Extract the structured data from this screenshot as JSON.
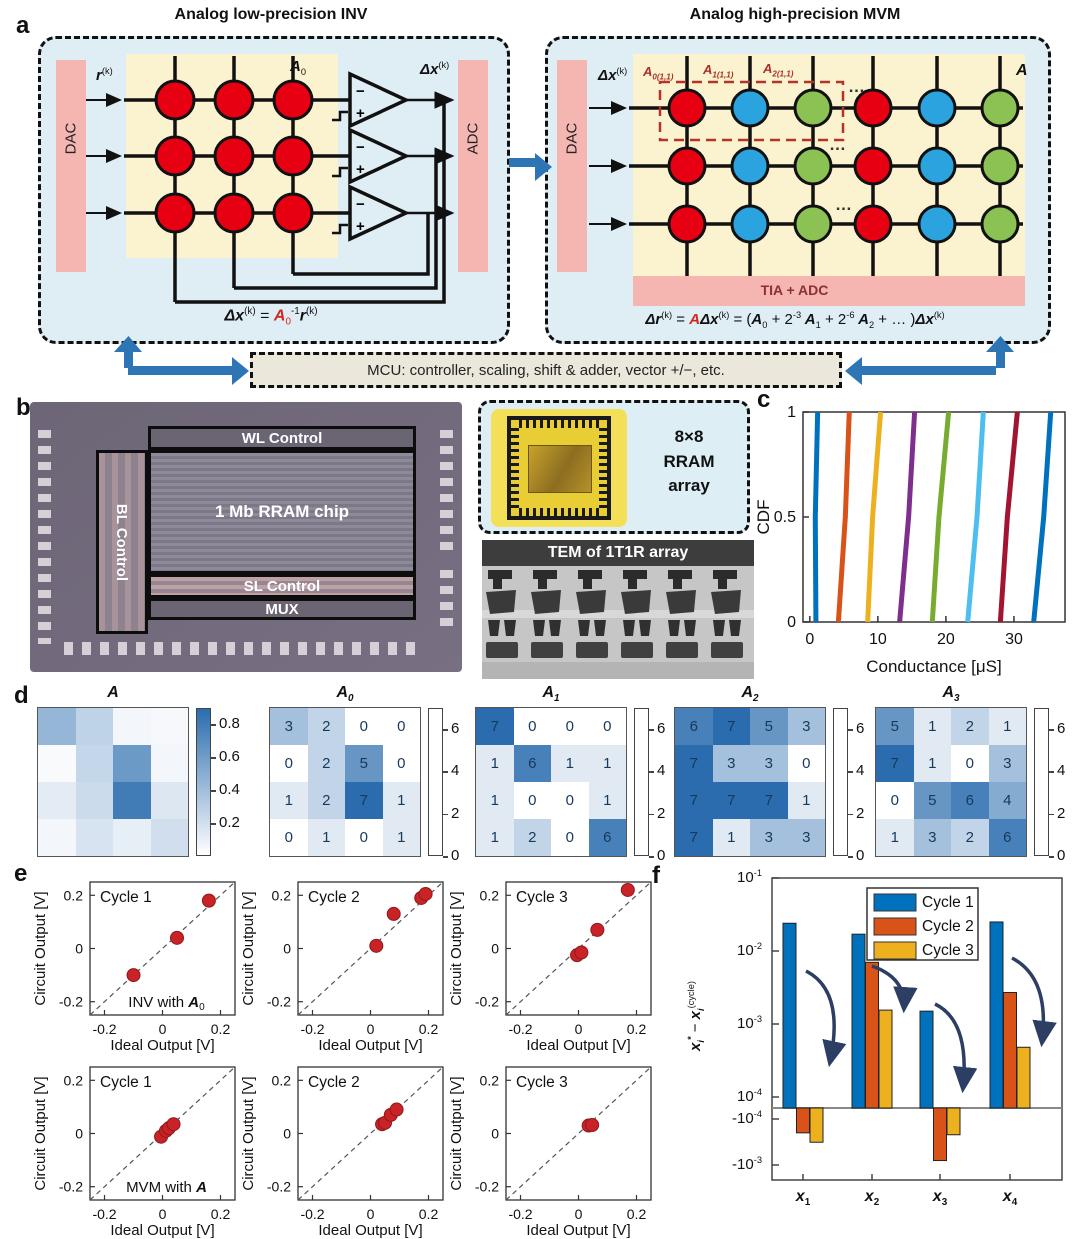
{
  "panels": {
    "a": "a",
    "b": "b",
    "c": "c",
    "d": "d",
    "e": "e",
    "f": "f"
  },
  "colors": {
    "accent_blue": "#2e75b6",
    "rram_red": "#e60012",
    "rram_blue": "#2ba3de",
    "rram_green": "#8cc153",
    "panel_bg": "#dfeef5",
    "crossbar_bg": "#fbf3d0",
    "periph_pink": "#f5b6b1",
    "heat_max": "#2a6cae",
    "dot_red": "#c92227"
  },
  "panel_a": {
    "left": {
      "title": "Analog low-precision INV",
      "dac_label": "DAC",
      "adc_label": "ADC",
      "r_base": "r",
      "r_sup": "(k)",
      "a0_base": "A",
      "a0_sub": "0",
      "dx_base": "Δx",
      "dx_sup": "(k)",
      "opamp_minus": "−",
      "opamp_plus": "+",
      "eq": {
        "p1": "Δx",
        "p2": "(k)",
        "p3": " = ",
        "p4": "A",
        "p5": "0",
        "p6": "-1",
        "p7": "r",
        "p8": "(k)"
      }
    },
    "right": {
      "title": "Analog high-precision MVM",
      "dac_label": "DAC",
      "tia_label": "TIA + ADC",
      "dx_base": "Δx",
      "dx_sup": "(k)",
      "a_label": "A",
      "cells": [
        {
          "b": "A",
          "s": "0(1,1)"
        },
        {
          "b": "A",
          "s": "1(1,1)"
        },
        {
          "b": "A",
          "s": "2(1,1)"
        }
      ],
      "ellipsis": "…",
      "eq": {
        "p1": "Δr",
        "p2": "(k)",
        "p3": " = ",
        "p4": "A",
        "p5": "Δx",
        "p6": "(k)",
        "p7": " = (",
        "p8": "A",
        "p9": "0",
        "p10": " + 2",
        "p11": "-3",
        "p12": " A",
        "p13": "1",
        "p14": " + 2",
        "p15": "-6",
        "p16": " A",
        "p17": "2",
        "p18": " + … )",
        "p19": "Δx",
        "p20": "(k)"
      }
    },
    "mcu_text": "MCU: controller, scaling, shift & adder, vector +/−, etc."
  },
  "panel_b": {
    "wl": "WL Control",
    "bl": "BL Control",
    "chip": "1 Mb RRAM chip",
    "sl": "SL Control",
    "mux": "MUX",
    "pkg_line1": "8×8",
    "pkg_line2": "RRAM",
    "pkg_line3": "array",
    "tem": "TEM of 1T1R array"
  },
  "panel_f_ylabel": {
    "s1": "x",
    "s2": "i",
    "s3": "*",
    "s4": " − ",
    "s5": "x",
    "s6": "i",
    "s7": "(cycle)"
  },
  "chart_data": [
    {
      "id": "cdf",
      "type": "line",
      "xlabel": "Conductance [μS]",
      "ylabel": "CDF",
      "xlim": [
        -1,
        37.5
      ],
      "ylim": [
        0,
        1
      ],
      "xticks": [
        0,
        10,
        20,
        30
      ],
      "yticks": [
        0,
        0.5,
        1
      ],
      "ytick_labels": [
        "0",
        "0.5",
        "1"
      ],
      "series": [
        {
          "name": "state-1",
          "color": "#0072BD",
          "x_at_cdf0": 0.9,
          "x_at_cdf1": 1.15
        },
        {
          "name": "state-2",
          "color": "#D95319",
          "x_at_cdf0": 4.2,
          "x_at_cdf1": 5.8
        },
        {
          "name": "state-3",
          "color": "#EDB120",
          "x_at_cdf0": 8.5,
          "x_at_cdf1": 10.4
        },
        {
          "name": "state-4",
          "color": "#7E2F8E",
          "x_at_cdf0": 13.2,
          "x_at_cdf1": 15.4
        },
        {
          "name": "state-5",
          "color": "#77AC30",
          "x_at_cdf0": 18.0,
          "x_at_cdf1": 20.4
        },
        {
          "name": "state-6",
          "color": "#4DBEEE",
          "x_at_cdf0": 23.2,
          "x_at_cdf1": 25.5
        },
        {
          "name": "state-7",
          "color": "#A2142F",
          "x_at_cdf0": 28.0,
          "x_at_cdf1": 30.5
        },
        {
          "name": "state-8",
          "color": "#0072BD",
          "x_at_cdf0": 32.9,
          "x_at_cdf1": 35.4
        }
      ]
    },
    {
      "id": "heatmaps",
      "type": "heatmap",
      "maps": [
        {
          "title_b": "A",
          "title_s": "",
          "vmin": 0,
          "vmax": 0.9,
          "ticks": [
            0.2,
            0.4,
            0.6,
            0.8
          ],
          "show_values": false,
          "values": [
            [
              0.45,
              0.27,
              0.05,
              0.04
            ],
            [
              0.03,
              0.25,
              0.62,
              0.05
            ],
            [
              0.12,
              0.22,
              0.8,
              0.15
            ],
            [
              0.05,
              0.17,
              0.1,
              0.2
            ]
          ]
        },
        {
          "title_b": "A",
          "title_s": "0",
          "vmin": 0,
          "vmax": 7,
          "ticks": [
            0,
            2,
            4,
            6
          ],
          "show_values": true,
          "values": [
            [
              3,
              2,
              0,
              0
            ],
            [
              0,
              2,
              5,
              0
            ],
            [
              1,
              2,
              7,
              1
            ],
            [
              0,
              1,
              0,
              1
            ]
          ]
        },
        {
          "title_b": "A",
          "title_s": "1",
          "vmin": 0,
          "vmax": 7,
          "ticks": [
            0,
            2,
            4,
            6
          ],
          "show_values": true,
          "values": [
            [
              7,
              0,
              0,
              0
            ],
            [
              1,
              6,
              1,
              1
            ],
            [
              1,
              0,
              0,
              1
            ],
            [
              1,
              2,
              0,
              6
            ]
          ]
        },
        {
          "title_b": "A",
          "title_s": "2",
          "vmin": 0,
          "vmax": 7,
          "ticks": [
            0,
            2,
            4,
            6
          ],
          "show_values": true,
          "values": [
            [
              6,
              7,
              5,
              3
            ],
            [
              7,
              3,
              3,
              0
            ],
            [
              7,
              7,
              7,
              1
            ],
            [
              7,
              1,
              3,
              3
            ]
          ]
        },
        {
          "title_b": "A",
          "title_s": "3",
          "vmin": 0,
          "vmax": 7,
          "ticks": [
            0,
            2,
            4,
            6
          ],
          "show_values": true,
          "values": [
            [
              5,
              1,
              2,
              1
            ],
            [
              7,
              1,
              0,
              3
            ],
            [
              0,
              5,
              6,
              4
            ],
            [
              1,
              3,
              2,
              6
            ]
          ]
        }
      ]
    },
    {
      "id": "scatter",
      "type": "scatter",
      "xlabel": "Ideal Output [V]",
      "ylabel": "Circuit Output [V]",
      "xlim": [
        -0.25,
        0.25
      ],
      "ylim": [
        -0.25,
        0.25
      ],
      "ticks": [
        -0.2,
        0,
        0.2
      ],
      "tick_labels": [
        "-0.2",
        "0",
        "0.2"
      ],
      "dot_color": "#c92227",
      "plots": [
        {
          "title": "Cycle 1",
          "ann_pre": "INV with ",
          "ann_bi": "A",
          "ann_sub": "0",
          "points": [
            [
              -0.1,
              -0.1
            ],
            [
              0.05,
              0.04
            ],
            [
              0.16,
              0.18
            ]
          ]
        },
        {
          "title": "Cycle 2",
          "ann_pre": "",
          "ann_bi": "",
          "ann_sub": "",
          "points": [
            [
              0.02,
              0.01
            ],
            [
              0.08,
              0.13
            ],
            [
              0.175,
              0.19
            ],
            [
              0.19,
              0.205
            ]
          ]
        },
        {
          "title": "Cycle 3",
          "ann_pre": "",
          "ann_bi": "",
          "ann_sub": "",
          "points": [
            [
              -0.005,
              -0.025
            ],
            [
              0.01,
              -0.015
            ],
            [
              0.065,
              0.07
            ],
            [
              0.17,
              0.22
            ]
          ]
        },
        {
          "title": "Cycle 1",
          "ann_pre": "MVM with ",
          "ann_bi": "A",
          "ann_sub": "",
          "points": [
            [
              -0.005,
              -0.012
            ],
            [
              0.012,
              0.01
            ],
            [
              0.022,
              0.02
            ],
            [
              0.038,
              0.035
            ]
          ]
        },
        {
          "title": "Cycle 2",
          "ann_pre": "",
          "ann_bi": "",
          "ann_sub": "",
          "points": [
            [
              0.04,
              0.035
            ],
            [
              0.05,
              0.04
            ],
            [
              0.07,
              0.07
            ],
            [
              0.09,
              0.09
            ]
          ]
        },
        {
          "title": "Cycle 3",
          "ann_pre": "",
          "ann_bi": "",
          "ann_sub": "",
          "points": [
            [
              0.035,
              0.03
            ],
            [
              0.047,
              0.032
            ]
          ]
        }
      ]
    },
    {
      "id": "error_bars",
      "type": "bar",
      "legend": [
        "Cycle 1",
        "Cycle 2",
        "Cycle 3"
      ],
      "colors": [
        "#0072BD",
        "#D95319",
        "#EDB120"
      ],
      "categories": [
        {
          "b": "x",
          "s": "1"
        },
        {
          "b": "x",
          "s": "2"
        },
        {
          "b": "x",
          "s": "3"
        },
        {
          "b": "x",
          "s": "4"
        }
      ],
      "ylim_pos": [
        0.0001,
        0.1
      ],
      "ylim_neg": [
        -0.0001,
        -0.001
      ],
      "yticks": [
        {
          "m": "10",
          "e": "-1"
        },
        {
          "m": "10",
          "e": "-2"
        },
        {
          "m": "10",
          "e": "-3"
        },
        {
          "m": "10",
          "e": "-4"
        },
        {
          "m": "-10",
          "e": "-4"
        },
        {
          "m": "-10",
          "e": "-3"
        }
      ],
      "series": [
        {
          "name": "Cycle 1",
          "values": [
            0.024,
            0.017,
            0.0015,
            0.025
          ]
        },
        {
          "name": "Cycle 2",
          "values": [
            -0.0002,
            0.007,
            -0.0008,
            0.0027
          ]
        },
        {
          "name": "Cycle 3",
          "values": [
            -0.00032,
            0.00155,
            -0.00022,
            0.00048
          ]
        }
      ]
    }
  ]
}
